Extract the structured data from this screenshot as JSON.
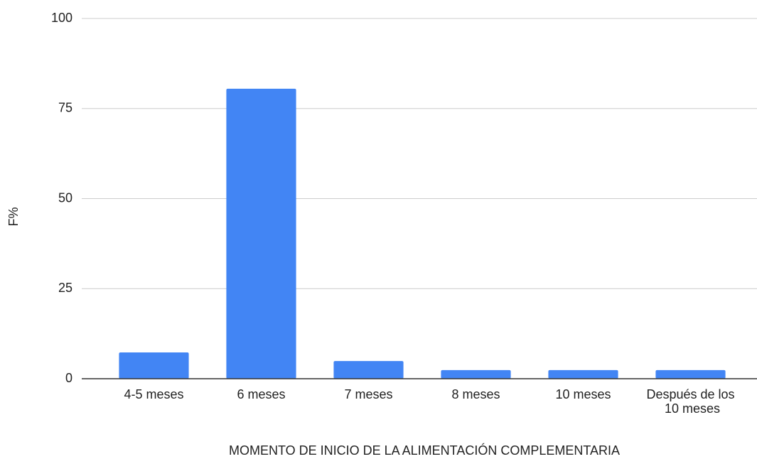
{
  "chart_data": {
    "type": "bar",
    "x_label": "MOMENTO DE INICIO DE LA ALIMENTACIÓN COMPLEMENTARIA",
    "y_label": "F%",
    "categories": [
      "4-5 meses",
      "6 meses",
      "7 meses",
      "8 meses",
      "10 meses",
      "Después de los 10 meses"
    ],
    "values": [
      7.3,
      80.5,
      4.9,
      2.4,
      2.4,
      2.4
    ],
    "color": "#4285f4",
    "ylim": [
      0,
      100
    ],
    "yticks": [
      0,
      25,
      50,
      75,
      100
    ],
    "grid": true
  }
}
